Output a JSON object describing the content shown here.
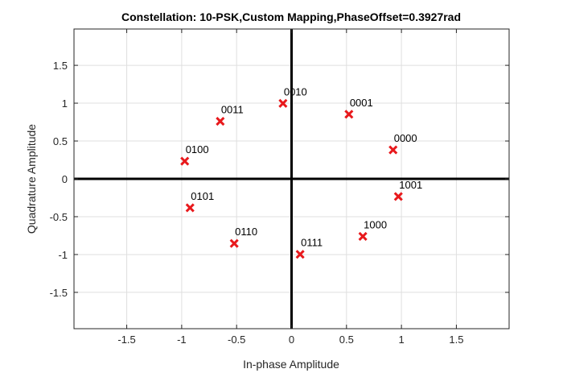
{
  "chart_data": {
    "type": "scatter",
    "title": "Constellation: 10-PSK,Custom Mapping,PhaseOffset=0.3927rad",
    "xlabel": "In-phase Amplitude",
    "ylabel": "Quadrature Amplitude",
    "xlim": [
      -1.98,
      1.98
    ],
    "ylim": [
      -1.98,
      1.98
    ],
    "xticks": [
      -1.5,
      -1,
      -0.5,
      0,
      0.5,
      1,
      1.5
    ],
    "yticks": [
      -1.5,
      -1,
      -0.5,
      0,
      0.5,
      1,
      1.5
    ],
    "grid": true,
    "marker_color": "#e8191c",
    "points": [
      {
        "label": "0000",
        "x": 0.924,
        "y": 0.383
      },
      {
        "label": "0001",
        "x": 0.522,
        "y": 0.853
      },
      {
        "label": "0010",
        "x": -0.078,
        "y": 0.997
      },
      {
        "label": "0011",
        "x": -0.649,
        "y": 0.76
      },
      {
        "label": "0100",
        "x": -0.972,
        "y": 0.233
      },
      {
        "label": "0101",
        "x": -0.924,
        "y": -0.383
      },
      {
        "label": "0110",
        "x": -0.522,
        "y": -0.853
      },
      {
        "label": "0111",
        "x": 0.078,
        "y": -0.997
      },
      {
        "label": "1000",
        "x": 0.649,
        "y": -0.76
      },
      {
        "label": "1001",
        "x": 0.972,
        "y": -0.233
      }
    ]
  }
}
